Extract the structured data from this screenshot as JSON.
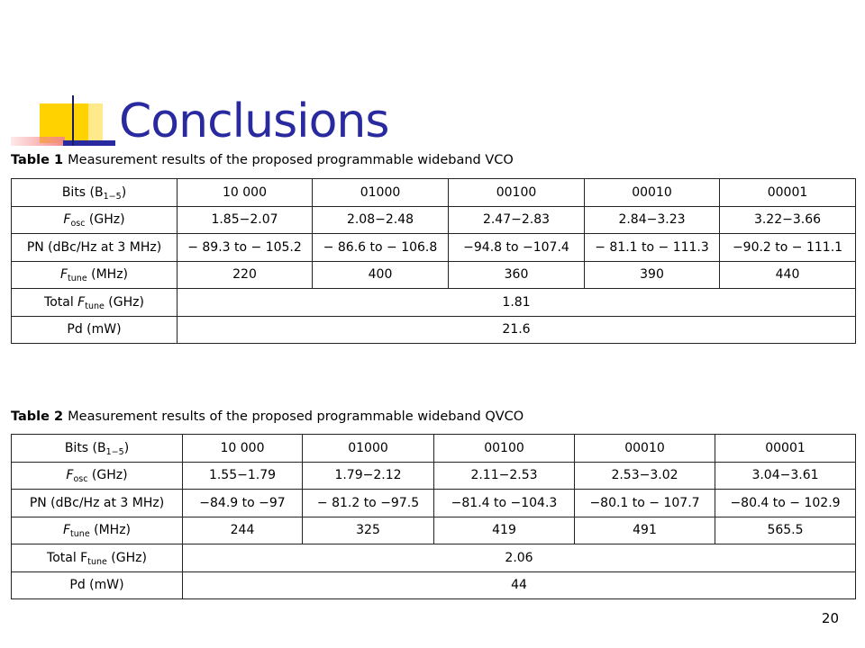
{
  "title": "Conclusions",
  "page_number": "20",
  "colors": {
    "title": "#2a2aa0",
    "accent_yellow": "#ffd200",
    "accent_red": "#f28a8a",
    "accent_blue": "#2a2aa0"
  },
  "table1": {
    "caption_label": "Table 1",
    "caption_text": "Measurement results of the proposed programmable wideband VCO",
    "row_labels": {
      "bits": {
        "main": "Bits (B",
        "sub": "1−5",
        "tail": ")"
      },
      "fosc": {
        "main": "F",
        "sub": "osc",
        "tail": " (GHz)"
      },
      "pn": "PN (dBc/Hz at 3 MHz)",
      "ftune": {
        "main": "F",
        "sub": "tune",
        "tail": " (MHz)"
      },
      "total": {
        "pre": "Total ",
        "main": "F",
        "sub": "tune",
        "tail": " (GHz)"
      },
      "pd": "Pd (mW)"
    },
    "bits": [
      "10 000",
      "01000",
      "00100",
      "00010",
      "00001"
    ],
    "fosc": [
      "1.85−2.07",
      "2.08−2.48",
      "2.47−2.83",
      "2.84−3.23",
      "3.22−3.66"
    ],
    "pn": [
      "− 89.3 to − 105.2",
      "− 86.6 to − 106.8",
      "−94.8 to −107.4",
      "− 81.1 to − 111.3",
      "−90.2 to − 111.1"
    ],
    "ftune": [
      "220",
      "400",
      "360",
      "390",
      "440"
    ],
    "total_ftune": "1.81",
    "pd": "21.6"
  },
  "table2": {
    "caption_label": "Table 2",
    "caption_text": "Measurement results of the proposed programmable wideband QVCO",
    "row_labels": {
      "bits": {
        "main": "Bits (B",
        "sub": "1−5",
        "tail": ")"
      },
      "fosc": {
        "main": "F",
        "sub": "osc",
        "tail": " (GHz)"
      },
      "pn": "PN (dBc/Hz at 3 MHz)",
      "ftune": {
        "main": "F",
        "sub": "tune",
        "tail": " (MHz)"
      },
      "total": {
        "pre": "Total ",
        "main": "F",
        "sub": "tune",
        "tail": " (GHz)"
      },
      "pd": "Pd (mW)"
    },
    "bits": [
      "10 000",
      "01000",
      "00100",
      "00010",
      "00001"
    ],
    "fosc": [
      "1.55−1.79",
      "1.79−2.12",
      "2.11−2.53",
      "2.53−3.02",
      "3.04−3.61"
    ],
    "pn": [
      "−84.9 to −97",
      "− 81.2 to −97.5",
      "−81.4 to −104.3",
      "−80.1 to − 107.7",
      "−80.4 to − 102.9"
    ],
    "ftune": [
      "244",
      "325",
      "419",
      "491",
      "565.5"
    ],
    "total_ftune": "2.06",
    "pd": "44"
  }
}
